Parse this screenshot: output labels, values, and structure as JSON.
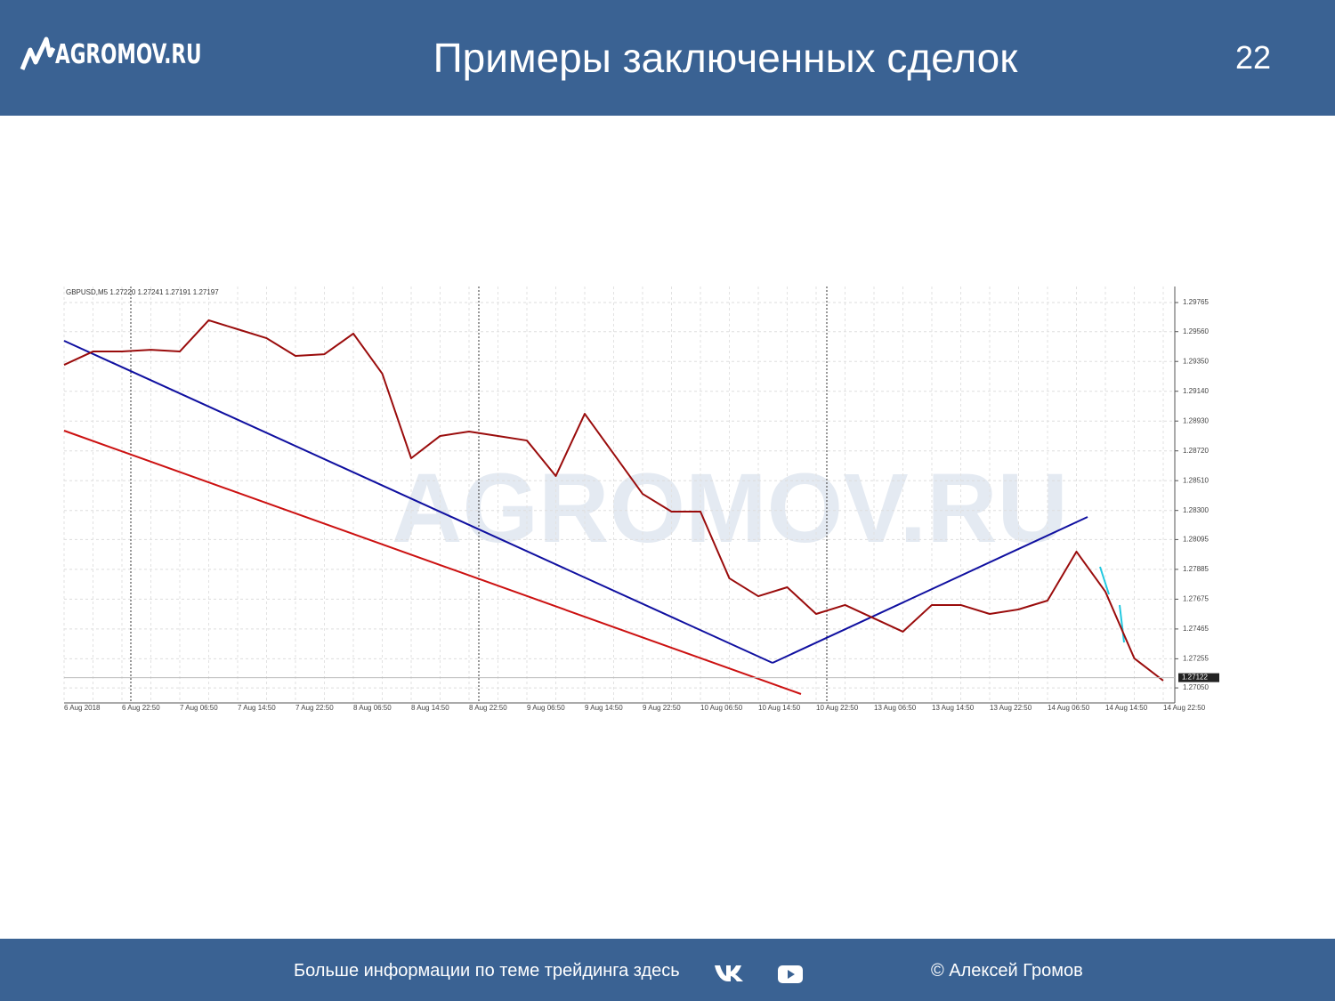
{
  "header": {
    "logo": "AGROMOV.RU",
    "title": "Примеры заключенных сделок",
    "page_number": "22"
  },
  "chart_data": {
    "type": "line",
    "title": "GBPUSD,M5 1.27220 1.27241 1.27191 1.27197",
    "watermark": "AGROMOV.RU",
    "categories": [
      "6 Aug 2018",
      null,
      "6 Aug 22:50",
      null,
      "7 Aug 06:50",
      null,
      "7 Aug 14:50",
      null,
      "7 Aug 22:50",
      null,
      "8 Aug 06:50",
      null,
      "8 Aug 14:50",
      null,
      "8 Aug 22:50",
      null,
      "9 Aug 06:50",
      null,
      "9 Aug 14:50",
      null,
      "9 Aug 22:50",
      null,
      "10 Aug 06:50",
      null,
      "10 Aug 14:50",
      null,
      "10 Aug 22:50",
      null,
      "13 Aug 06:50",
      null,
      "13 Aug 14:50",
      null,
      "13 Aug 22:50",
      null,
      "14 Aug 06:50",
      null,
      "14 Aug 14:50",
      null,
      "14 Aug 22:50"
    ],
    "values": [
      1.29326,
      1.2942,
      1.2942,
      1.29432,
      1.2942,
      1.2964,
      1.29577,
      1.29514,
      1.29389,
      1.29401,
      1.29546,
      1.29264,
      1.28668,
      1.28825,
      1.28856,
      1.28825,
      1.28793,
      1.28543,
      1.28981,
      1.28699,
      1.28417,
      1.28292,
      1.28292,
      1.27822,
      1.27696,
      1.27759,
      1.27571,
      1.27634,
      1.2754,
      1.27446,
      1.27634,
      1.27634,
      1.27571,
      1.27603,
      1.27665,
      1.2801,
      1.27728,
      1.27258,
      1.27101
    ],
    "color": "#9a0c0c",
    "last_value": 1.27122,
    "ylim": [
      1.26944,
      1.29878
    ],
    "yticks": [
      1.29765,
      {
        "value": 1.2956,
        "label": "1.29560"
      },
      {
        "value": 1.2935,
        "label": "1.29350"
      },
      {
        "value": 1.2914,
        "label": "1.29140"
      },
      {
        "value": 1.2893,
        "label": "1.28930"
      },
      {
        "value": 1.2872,
        "label": "1.28720"
      },
      {
        "value": 1.2851,
        "label": "1.28510"
      },
      {
        "value": 1.283,
        "label": "1.28300"
      },
      1.28095,
      1.27885,
      1.27675,
      1.27465,
      1.27255,
      {
        "value": 1.2705,
        "label": "1.27050"
      }
    ],
    "grid": true
  },
  "footer": {
    "text": "Больше информации по теме трейдинга здесь",
    "copyright": "© Алексей Громов"
  }
}
